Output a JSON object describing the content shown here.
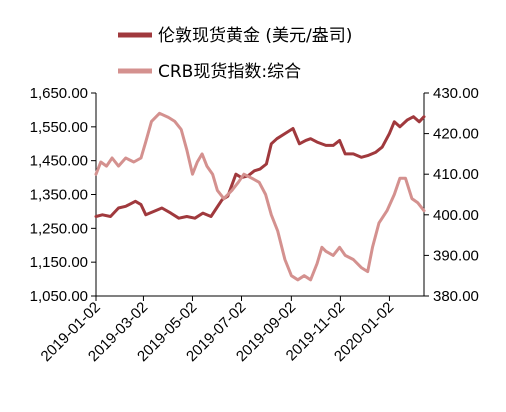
{
  "chart_data": {
    "type": "line",
    "legend_position": "top",
    "x_ticks": [
      "2019-01-02",
      "2019-03-02",
      "2019-05-02",
      "2019-07-02",
      "2019-09-02",
      "2019-11-02",
      "2020-01-02"
    ],
    "x_range": [
      "2019-01-02",
      "2020-02-14"
    ],
    "y_left": {
      "ticks": [
        "1,050.00",
        "1,150.00",
        "1,250.00",
        "1,350.00",
        "1,450.00",
        "1,550.00",
        "1,650.00"
      ],
      "min": 1050,
      "max": 1650
    },
    "y_right": {
      "ticks": [
        "380.00",
        "390.00",
        "400.00",
        "410.00",
        "420.00",
        "430.00"
      ],
      "min": 380,
      "max": 430
    },
    "grid": false,
    "series": [
      {
        "name": "伦敦现货黄金 (美元/盎司)",
        "axis": "left",
        "color": "#a0393d",
        "points": [
          [
            "2019-01-02",
            1285
          ],
          [
            "2019-01-10",
            1290
          ],
          [
            "2019-01-20",
            1285
          ],
          [
            "2019-01-30",
            1310
          ],
          [
            "2019-02-08",
            1315
          ],
          [
            "2019-02-20",
            1330
          ],
          [
            "2019-02-27",
            1320
          ],
          [
            "2019-03-05",
            1290
          ],
          [
            "2019-03-15",
            1300
          ],
          [
            "2019-03-25",
            1310
          ],
          [
            "2019-04-05",
            1295
          ],
          [
            "2019-04-15",
            1280
          ],
          [
            "2019-04-25",
            1285
          ],
          [
            "2019-05-05",
            1280
          ],
          [
            "2019-05-15",
            1295
          ],
          [
            "2019-05-25",
            1285
          ],
          [
            "2019-06-01",
            1310
          ],
          [
            "2019-06-08",
            1335
          ],
          [
            "2019-06-15",
            1345
          ],
          [
            "2019-06-25",
            1410
          ],
          [
            "2019-07-02",
            1400
          ],
          [
            "2019-07-10",
            1405
          ],
          [
            "2019-07-18",
            1420
          ],
          [
            "2019-07-25",
            1425
          ],
          [
            "2019-08-02",
            1440
          ],
          [
            "2019-08-08",
            1500
          ],
          [
            "2019-08-15",
            1515
          ],
          [
            "2019-08-25",
            1530
          ],
          [
            "2019-09-04",
            1545
          ],
          [
            "2019-09-12",
            1500
          ],
          [
            "2019-09-20",
            1510
          ],
          [
            "2019-09-26",
            1515
          ],
          [
            "2019-10-04",
            1505
          ],
          [
            "2019-10-15",
            1495
          ],
          [
            "2019-10-24",
            1495
          ],
          [
            "2019-11-01",
            1510
          ],
          [
            "2019-11-08",
            1470
          ],
          [
            "2019-11-18",
            1470
          ],
          [
            "2019-11-28",
            1460
          ],
          [
            "2019-12-06",
            1465
          ],
          [
            "2019-12-16",
            1475
          ],
          [
            "2019-12-24",
            1490
          ],
          [
            "2020-01-02",
            1530
          ],
          [
            "2020-01-08",
            1565
          ],
          [
            "2020-01-15",
            1550
          ],
          [
            "2020-01-24",
            1570
          ],
          [
            "2020-02-01",
            1580
          ],
          [
            "2020-02-08",
            1565
          ],
          [
            "2020-02-14",
            1580
          ]
        ]
      },
      {
        "name": "CRB现货指数:综合",
        "axis": "right",
        "color": "#d4918f",
        "points": [
          [
            "2019-01-02",
            410
          ],
          [
            "2019-01-08",
            413
          ],
          [
            "2019-01-15",
            412
          ],
          [
            "2019-01-22",
            414
          ],
          [
            "2019-01-30",
            412
          ],
          [
            "2019-02-08",
            414
          ],
          [
            "2019-02-18",
            413
          ],
          [
            "2019-02-27",
            414
          ],
          [
            "2019-03-05",
            418
          ],
          [
            "2019-03-12",
            423
          ],
          [
            "2019-03-22",
            425
          ],
          [
            "2019-04-02",
            424
          ],
          [
            "2019-04-10",
            423
          ],
          [
            "2019-04-18",
            421
          ],
          [
            "2019-04-25",
            416
          ],
          [
            "2019-05-02",
            410
          ],
          [
            "2019-05-08",
            413
          ],
          [
            "2019-05-14",
            415
          ],
          [
            "2019-05-20",
            412
          ],
          [
            "2019-05-27",
            410
          ],
          [
            "2019-06-02",
            406
          ],
          [
            "2019-06-10",
            404
          ],
          [
            "2019-06-20",
            406
          ],
          [
            "2019-06-28",
            408
          ],
          [
            "2019-07-05",
            410
          ],
          [
            "2019-07-15",
            409
          ],
          [
            "2019-07-24",
            408
          ],
          [
            "2019-08-01",
            405
          ],
          [
            "2019-08-08",
            400
          ],
          [
            "2019-08-16",
            396
          ],
          [
            "2019-08-25",
            389
          ],
          [
            "2019-09-02",
            385
          ],
          [
            "2019-09-10",
            384
          ],
          [
            "2019-09-18",
            385
          ],
          [
            "2019-09-26",
            384
          ],
          [
            "2019-10-04",
            388
          ],
          [
            "2019-10-10",
            392
          ],
          [
            "2019-10-15",
            391
          ],
          [
            "2019-10-24",
            390
          ],
          [
            "2019-11-01",
            392
          ],
          [
            "2019-11-08",
            390
          ],
          [
            "2019-11-18",
            389
          ],
          [
            "2019-11-28",
            387
          ],
          [
            "2019-12-06",
            386
          ],
          [
            "2019-12-12",
            392
          ],
          [
            "2019-12-20",
            398
          ],
          [
            "2019-12-30",
            401
          ],
          [
            "2020-01-08",
            405
          ],
          [
            "2020-01-15",
            409
          ],
          [
            "2020-01-22",
            409
          ],
          [
            "2020-01-30",
            404
          ],
          [
            "2020-02-06",
            403
          ],
          [
            "2020-02-14",
            401
          ]
        ]
      }
    ]
  }
}
